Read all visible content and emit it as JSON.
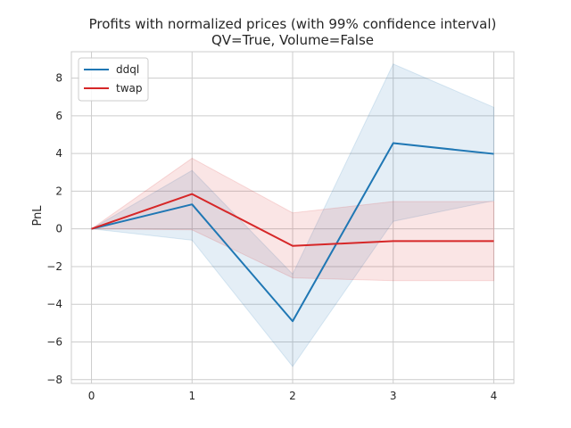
{
  "chart_data": {
    "type": "line",
    "title": "Profits with normalized prices (with 99% confidence interval)",
    "subtitle": "QV=True, Volume=False",
    "xlabel": "",
    "ylabel": "PnL",
    "x": [
      0,
      1,
      2,
      3,
      4
    ],
    "xticks": [
      "0",
      "1",
      "2",
      "3",
      "4"
    ],
    "yticks": [
      "−8",
      "−6",
      "−4",
      "−2",
      "0",
      "2",
      "4",
      "6",
      "8"
    ],
    "xlim": [
      -0.2,
      4.2
    ],
    "ylim": [
      -8.2,
      9.4
    ],
    "grid": true,
    "legend_position": "top-left",
    "series": [
      {
        "name": "ddql",
        "color": "#1f77b4",
        "values": [
          0,
          1.3,
          -4.9,
          4.55,
          3.98
        ],
        "ci_lower": [
          0,
          -0.6,
          -7.3,
          0.4,
          1.5
        ],
        "ci_upper": [
          0,
          3.1,
          -2.4,
          8.75,
          6.45
        ]
      },
      {
        "name": "twap",
        "color": "#d62728",
        "values": [
          0,
          1.85,
          -0.9,
          -0.65,
          -0.65
        ],
        "ci_lower": [
          0,
          -0.05,
          -2.6,
          -2.75,
          -2.75
        ],
        "ci_upper": [
          0,
          3.75,
          0.85,
          1.45,
          1.45
        ]
      }
    ]
  }
}
